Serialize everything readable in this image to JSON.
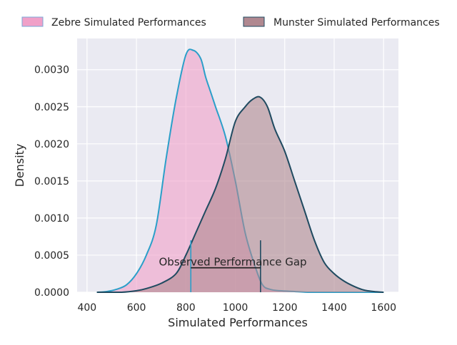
{
  "chart_data": {
    "type": "area",
    "title": "",
    "xlabel": "Simulated Performances",
    "ylabel": "Density",
    "xlim": [
      360,
      1660
    ],
    "ylim": [
      0,
      0.00342
    ],
    "xticks": [
      400,
      600,
      800,
      1000,
      1200,
      1400,
      1600
    ],
    "xtick_labels": [
      "400",
      "600",
      "800",
      "1000",
      "1200",
      "1400",
      "1600"
    ],
    "yticks": [
      0,
      0.0005,
      0.001,
      0.0015,
      0.002,
      0.0025,
      0.003
    ],
    "ytick_labels": [
      "0.0000",
      "0.0005",
      "0.0010",
      "0.0015",
      "0.0020",
      "0.0025",
      "0.0030"
    ],
    "grid": true,
    "legend_position": "top",
    "series": [
      {
        "name": "Zebre Simulated Performances",
        "color_fill": "#f0a0c8",
        "color_line": "#2a9fc9",
        "x": [
          440,
          480,
          520,
          560,
          600,
          640,
          680,
          720,
          760,
          800,
          830,
          860,
          880,
          900,
          920,
          960,
          1000,
          1040,
          1080,
          1110,
          1140,
          1180,
          1240,
          1300,
          1360,
          1420,
          1480,
          1540,
          1600
        ],
        "values": [
          0.0,
          1e-05,
          4e-05,
          0.0001,
          0.00025,
          0.0005,
          0.0009,
          0.0018,
          0.0026,
          0.0032,
          0.00326,
          0.00315,
          0.0029,
          0.0027,
          0.0025,
          0.0021,
          0.0015,
          0.0008,
          0.00035,
          0.0001,
          4e-05,
          2e-05,
          1e-05,
          0.0,
          0.0,
          0.0,
          0.0,
          0.0,
          0.0
        ]
      },
      {
        "name": "Munster Simulated Performances",
        "color_fill": "#b08890",
        "color_line": "#1f4a60",
        "x": [
          440,
          540,
          600,
          640,
          700,
          760,
          800,
          840,
          880,
          920,
          960,
          1000,
          1040,
          1070,
          1100,
          1130,
          1160,
          1200,
          1240,
          1280,
          1320,
          1360,
          1400,
          1440,
          1480,
          1520,
          1560,
          1600
        ],
        "values": [
          0.0,
          0.0,
          2e-05,
          5e-05,
          0.00012,
          0.00025,
          0.0005,
          0.0008,
          0.0011,
          0.0014,
          0.0018,
          0.0023,
          0.0025,
          0.0026,
          0.00263,
          0.0025,
          0.0022,
          0.0019,
          0.0015,
          0.0011,
          0.0007,
          0.0004,
          0.00025,
          0.00015,
          8e-05,
          3e-05,
          1e-05,
          0.0
        ]
      }
    ],
    "annotations": [
      {
        "text": "Observed Performance Gap",
        "x_start": 820,
        "x_end": 1102,
        "y": 0.00033,
        "vline_height": 0.0007
      }
    ]
  }
}
